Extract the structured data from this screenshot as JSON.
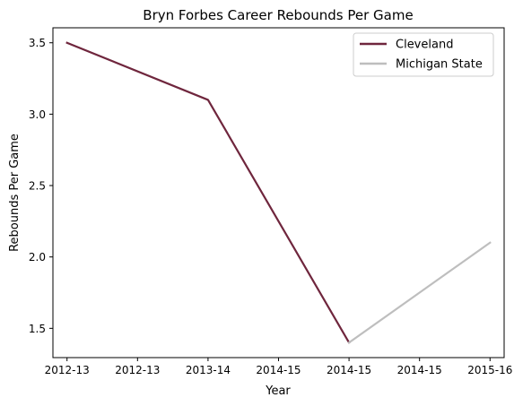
{
  "chart_data": {
    "type": "line",
    "title": "Bryn Forbes Career Rebounds Per Game",
    "xlabel": "Year",
    "ylabel": "Rebounds Per Game",
    "x_tick_labels": [
      "2012-13",
      "2012-13",
      "2013-14",
      "2014-15",
      "2014-15",
      "2014-15",
      "2015-16"
    ],
    "xlim": [
      -0.2,
      6.2
    ],
    "ylim": [
      1.295,
      3.605
    ],
    "y_ticks": [
      1.5,
      2.0,
      2.5,
      3.0,
      3.5
    ],
    "grid": false,
    "legend_position": "top-right",
    "series": [
      {
        "name": "Cleveland",
        "color": "#6f263d",
        "points": [
          {
            "x": 0,
            "y": 3.5
          },
          {
            "x": 2,
            "y": 3.1
          },
          {
            "x": 4,
            "y": 1.4
          }
        ]
      },
      {
        "name": "Michigan State",
        "color": "#bebebe",
        "points": [
          {
            "x": 4,
            "y": 1.4
          },
          {
            "x": 6,
            "y": 2.1
          }
        ]
      }
    ]
  }
}
